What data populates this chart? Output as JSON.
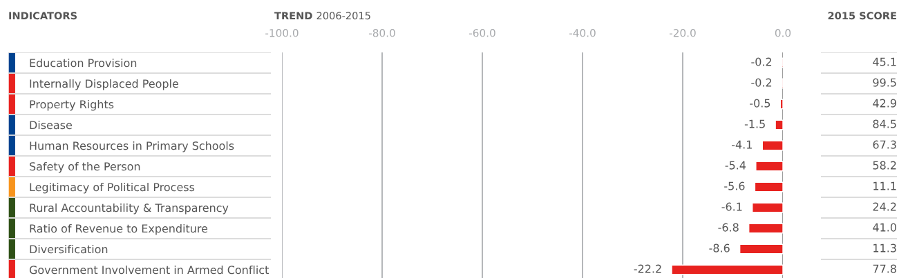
{
  "chart_data": [
    {
      "type": "bar",
      "orientation": "horizontal",
      "title": "TREND 2006-2015",
      "ylabel": "INDICATORS",
      "categories": [
        "Education Provision",
        "Internally Displaced People",
        "Property Rights",
        "Disease",
        "Human Resources in Primary Schools",
        "Safety of the Person",
        "Legitimacy of Political Process",
        "Rural Accountability & Transparency",
        "Ratio of Revenue to Expenditure",
        "Diversification",
        "Government Involvement in Armed Conflict"
      ],
      "values": [
        -0.2,
        -0.2,
        -0.5,
        -1.5,
        -4.1,
        -5.4,
        -5.6,
        -6.1,
        -6.8,
        -8.6,
        -22.2
      ],
      "color": "#e8221f",
      "data_labels": true,
      "grid": "x",
      "xlim": [
        -100,
        0
      ],
      "xticks": [
        {
          "value": -100,
          "label": "-100.0"
        },
        {
          "value": -80,
          "label": "-80.0"
        },
        {
          "value": -60,
          "label": "-60.0"
        },
        {
          "value": -40,
          "label": "-40.0"
        },
        {
          "value": -20,
          "label": "-20.0"
        },
        {
          "value": 0,
          "label": "0.0"
        }
      ]
    },
    {
      "type": "other",
      "title": "2015 SCORE",
      "categories": [
        null,
        null,
        null,
        null,
        null,
        null,
        null,
        null,
        null,
        null,
        null
      ],
      "values": [
        45.1,
        99.5,
        42.9,
        84.5,
        67.3,
        58.2,
        11.1,
        24.2,
        41.0,
        11.3,
        77.8
      ],
      "value_labels": [
        "45.1",
        "99.5",
        "42.9",
        "84.5",
        "67.3",
        "58.2",
        "11.1",
        "24.2",
        "41.0",
        "11.3",
        "77.8"
      ]
    }
  ]
}
